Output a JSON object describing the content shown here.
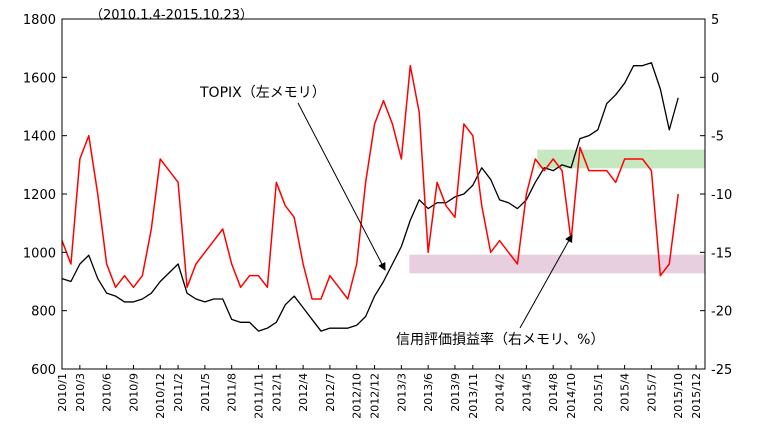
{
  "chart_data": {
    "type": "line",
    "subtitle": "（2010.1.4-2015.10.23）",
    "y_left": {
      "range": [
        600,
        1800
      ],
      "ticks": [
        "600",
        "800",
        "1000",
        "1200",
        "1400",
        "1600",
        "1800"
      ]
    },
    "y_right": {
      "range": [
        -25,
        5
      ],
      "ticks": [
        "-25",
        "-20",
        "-15",
        "-10",
        "-5",
        "0",
        "5"
      ]
    },
    "x_ticks": [
      "2010/1",
      "2010/3",
      "2010/6",
      "2010/9",
      "2010/12",
      "2011/2",
      "2011/5",
      "2011/8",
      "2011/11",
      "2012/1",
      "2012/4",
      "2012/7",
      "2012/10",
      "2012/12",
      "2013/3",
      "2013/6",
      "2013/9",
      "2013/11",
      "2014/2",
      "2014/5",
      "2014/8",
      "2014/10",
      "2015/1",
      "2015/4",
      "2015/7",
      "2015/10",
      "2015/12"
    ],
    "grid": false,
    "bands": [
      {
        "axis": "right",
        "from": -6.2,
        "to": -7.8,
        "color": "#c6e8c0"
      },
      {
        "axis": "right",
        "from": -15.2,
        "to": -16.8,
        "color": "#e8cfe0"
      }
    ],
    "series": [
      {
        "name": "TOPIX（左メモリ）",
        "axis": "left",
        "color": "#000000",
        "x": [
          "2010/1",
          "2010/2",
          "2010/3",
          "2010/4",
          "2010/5",
          "2010/6",
          "2010/7",
          "2010/8",
          "2010/9",
          "2010/10",
          "2010/11",
          "2010/12",
          "2011/1",
          "2011/2",
          "2011/3",
          "2011/4",
          "2011/5",
          "2011/6",
          "2011/7",
          "2011/8",
          "2011/9",
          "2011/10",
          "2011/11",
          "2011/12",
          "2012/1",
          "2012/2",
          "2012/3",
          "2012/4",
          "2012/5",
          "2012/6",
          "2012/7",
          "2012/8",
          "2012/9",
          "2012/10",
          "2012/11",
          "2012/12",
          "2013/1",
          "2013/2",
          "2013/3",
          "2013/4",
          "2013/5",
          "2013/6",
          "2013/7",
          "2013/8",
          "2013/9",
          "2013/10",
          "2013/11",
          "2013/12",
          "2014/1",
          "2014/2",
          "2014/3",
          "2014/4",
          "2014/5",
          "2014/6",
          "2014/7",
          "2014/8",
          "2014/9",
          "2014/10",
          "2014/11",
          "2014/12",
          "2015/1",
          "2015/2",
          "2015/3",
          "2015/4",
          "2015/5",
          "2015/6",
          "2015/7",
          "2015/8",
          "2015/9",
          "2015/10"
        ],
        "values": [
          910,
          900,
          960,
          990,
          910,
          860,
          850,
          830,
          830,
          840,
          860,
          900,
          930,
          960,
          860,
          840,
          830,
          840,
          840,
          770,
          760,
          760,
          730,
          740,
          760,
          820,
          850,
          810,
          770,
          730,
          740,
          740,
          740,
          750,
          780,
          850,
          900,
          960,
          1020,
          1110,
          1180,
          1150,
          1170,
          1170,
          1190,
          1200,
          1230,
          1290,
          1250,
          1180,
          1170,
          1150,
          1180,
          1240,
          1290,
          1280,
          1300,
          1290,
          1390,
          1400,
          1420,
          1510,
          1540,
          1580,
          1640,
          1640,
          1650,
          1560,
          1420,
          1530
        ]
      },
      {
        "name": "信用評価損益率（右メモリ、%）",
        "axis": "right",
        "color": "#ff0000",
        "x": [
          "2010/1",
          "2010/2",
          "2010/3",
          "2010/4",
          "2010/5",
          "2010/6",
          "2010/7",
          "2010/8",
          "2010/9",
          "2010/10",
          "2010/11",
          "2010/12",
          "2011/1",
          "2011/2",
          "2011/3",
          "2011/4",
          "2011/5",
          "2011/6",
          "2011/7",
          "2011/8",
          "2011/9",
          "2011/10",
          "2011/11",
          "2011/12",
          "2012/1",
          "2012/2",
          "2012/3",
          "2012/4",
          "2012/5",
          "2012/6",
          "2012/7",
          "2012/8",
          "2012/9",
          "2012/10",
          "2012/11",
          "2012/12",
          "2013/1",
          "2013/2",
          "2013/3",
          "2013/4",
          "2013/5",
          "2013/6",
          "2013/7",
          "2013/8",
          "2013/9",
          "2013/10",
          "2013/11",
          "2013/12",
          "2014/1",
          "2014/2",
          "2014/3",
          "2014/4",
          "2014/5",
          "2014/6",
          "2014/7",
          "2014/8",
          "2014/9",
          "2014/10",
          "2014/11",
          "2014/12",
          "2015/1",
          "2015/2",
          "2015/3",
          "2015/4",
          "2015/5",
          "2015/6",
          "2015/7",
          "2015/8",
          "2015/9",
          "2015/10"
        ],
        "values": [
          -14,
          -16,
          -7,
          -5,
          -10,
          -16,
          -18,
          -17,
          -18,
          -17,
          -13,
          -7,
          -8,
          -9,
          -18,
          -16,
          -15,
          -14,
          -13,
          -16,
          -18,
          -17,
          -17,
          -18,
          -9,
          -11,
          -12,
          -16,
          -19,
          -19,
          -17,
          -18,
          -19,
          -16,
          -9,
          -4,
          -2,
          -4,
          -7,
          1,
          -3,
          -15,
          -9,
          -11,
          -12,
          -4,
          -5,
          -11,
          -15,
          -14,
          -15,
          -16,
          -10,
          -7,
          -8,
          -7,
          -8,
          -14,
          -6,
          -8,
          -8,
          -8,
          -9,
          -7,
          -7,
          -7,
          -8,
          -17,
          -16,
          -10
        ]
      }
    ],
    "annotations": [
      {
        "text": "TOPIX（左メモリ）"
      },
      {
        "text": "信用評価損益率（右メモリ、%）"
      }
    ]
  }
}
